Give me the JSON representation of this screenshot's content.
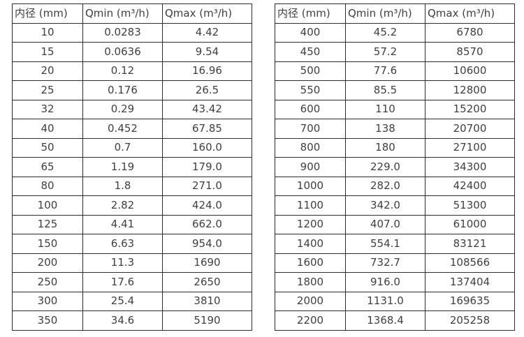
{
  "colors": {
    "background": "#ffffff",
    "border": "#2b2b2b",
    "text": "#3f3f3f"
  },
  "tables": [
    {
      "name": "flow-range-table-dn10-350",
      "headers": [
        "内径 (mm)",
        "Qmin (m³/h)",
        "Qmax (m³/h)"
      ],
      "rows": [
        [
          "10",
          "0.0283",
          "4.42"
        ],
        [
          "15",
          "0.0636",
          "9.54"
        ],
        [
          "20",
          "0.12",
          "16.96"
        ],
        [
          "25",
          "0.176",
          "26.5"
        ],
        [
          "32",
          "0.29",
          "43.42"
        ],
        [
          "40",
          "0.452",
          "67.85"
        ],
        [
          "50",
          "0.7",
          "160.0"
        ],
        [
          "65",
          "1.19",
          "179.0"
        ],
        [
          "80",
          "1.8",
          "271.0"
        ],
        [
          "100",
          "2.82",
          "424.0"
        ],
        [
          "125",
          "4.41",
          "662.0"
        ],
        [
          "150",
          "6.63",
          "954.0"
        ],
        [
          "200",
          "11.3",
          "1690"
        ],
        [
          "250",
          "17.6",
          "2650"
        ],
        [
          "300",
          "25.4",
          "3810"
        ],
        [
          "350",
          "34.6",
          "5190"
        ]
      ]
    },
    {
      "name": "flow-range-table-dn400-2200",
      "headers": [
        "内径 (mm)",
        "Qmin (m³/h)",
        "Qmax (m³/h)"
      ],
      "rows": [
        [
          "400",
          "45.2",
          "6780"
        ],
        [
          "450",
          "57.2",
          "8570"
        ],
        [
          "500",
          "77.6",
          "10600"
        ],
        [
          "550",
          "85.5",
          "12800"
        ],
        [
          "600",
          "110",
          "15200"
        ],
        [
          "700",
          "138",
          "20700"
        ],
        [
          "800",
          "180",
          "27100"
        ],
        [
          "900",
          "229.0",
          "34300"
        ],
        [
          "1000",
          "282.0",
          "42400"
        ],
        [
          "1100",
          "342.0",
          "51300"
        ],
        [
          "1200",
          "407.0",
          "61000"
        ],
        [
          "1400",
          "554.1",
          "83121"
        ],
        [
          "1600",
          "732.7",
          "108566"
        ],
        [
          "1800",
          "916.0",
          "137404"
        ],
        [
          "2000",
          "1131.0",
          "169635"
        ],
        [
          "2200",
          "1368.4",
          "205258"
        ]
      ]
    }
  ]
}
